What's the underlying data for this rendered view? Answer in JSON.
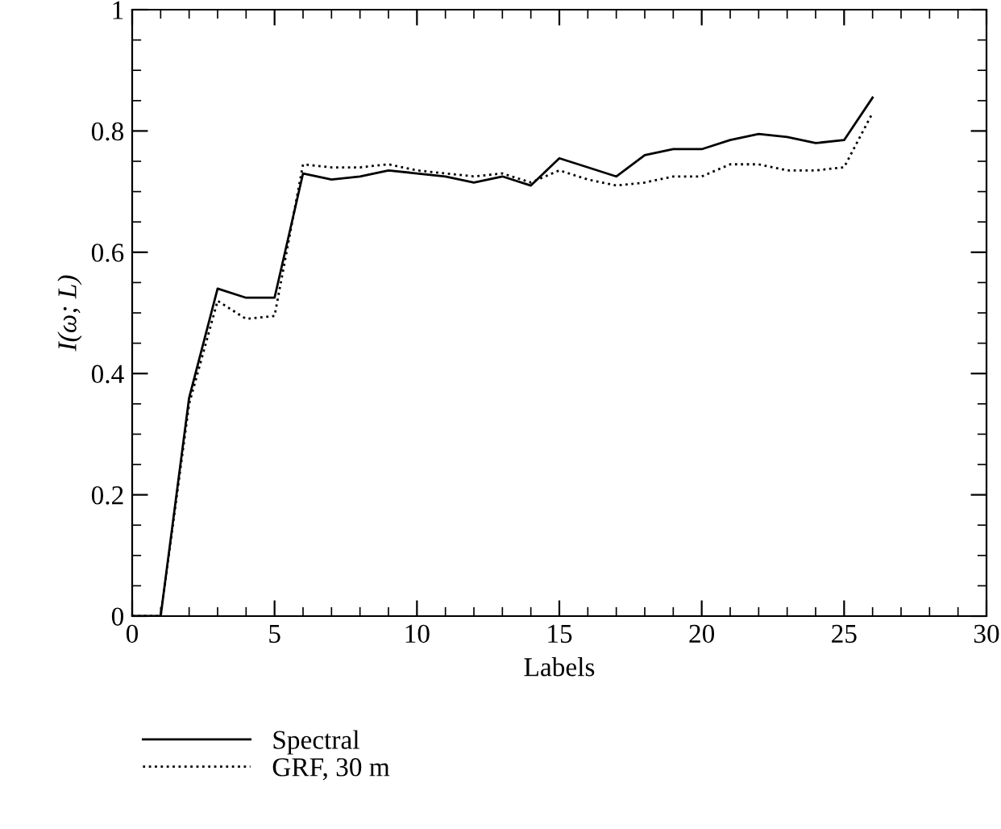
{
  "chart_data": {
    "type": "line",
    "xlabel": "Labels",
    "ylabel": "I(ω; L)",
    "x": [
      0,
      1,
      2,
      3,
      4,
      5,
      6,
      7,
      8,
      9,
      10,
      11,
      12,
      13,
      14,
      15,
      16,
      17,
      18,
      19,
      20,
      21,
      22,
      23,
      24,
      25,
      26
    ],
    "series": [
      {
        "name": "Spectral",
        "color": "#000000",
        "line_style": "solid",
        "values": [
          0,
          0,
          0.36,
          0.54,
          0.525,
          0.525,
          0.73,
          0.72,
          0.725,
          0.735,
          0.73,
          0.725,
          0.715,
          0.725,
          0.71,
          0.755,
          0.74,
          0.725,
          0.76,
          0.77,
          0.77,
          0.785,
          0.795,
          0.79,
          0.78,
          0.785,
          0.855
        ]
      },
      {
        "name": "GRF, 30 m",
        "color": "#000000",
        "line_style": "dotted",
        "values": [
          0,
          0,
          0.35,
          0.52,
          0.49,
          0.495,
          0.745,
          0.74,
          0.74,
          0.745,
          0.735,
          0.73,
          0.725,
          0.73,
          0.715,
          0.735,
          0.72,
          0.71,
          0.715,
          0.725,
          0.725,
          0.745,
          0.745,
          0.735,
          0.735,
          0.74,
          0.83
        ]
      }
    ],
    "xlim": [
      0,
      30
    ],
    "xticks": [
      0,
      5,
      10,
      15,
      20,
      25,
      30
    ],
    "ylim": [
      0,
      1
    ],
    "yticks": [
      0,
      0.2,
      0.4,
      0.6,
      0.8,
      1
    ],
    "grid": false,
    "legend": "bottom",
    "marker": "none"
  }
}
